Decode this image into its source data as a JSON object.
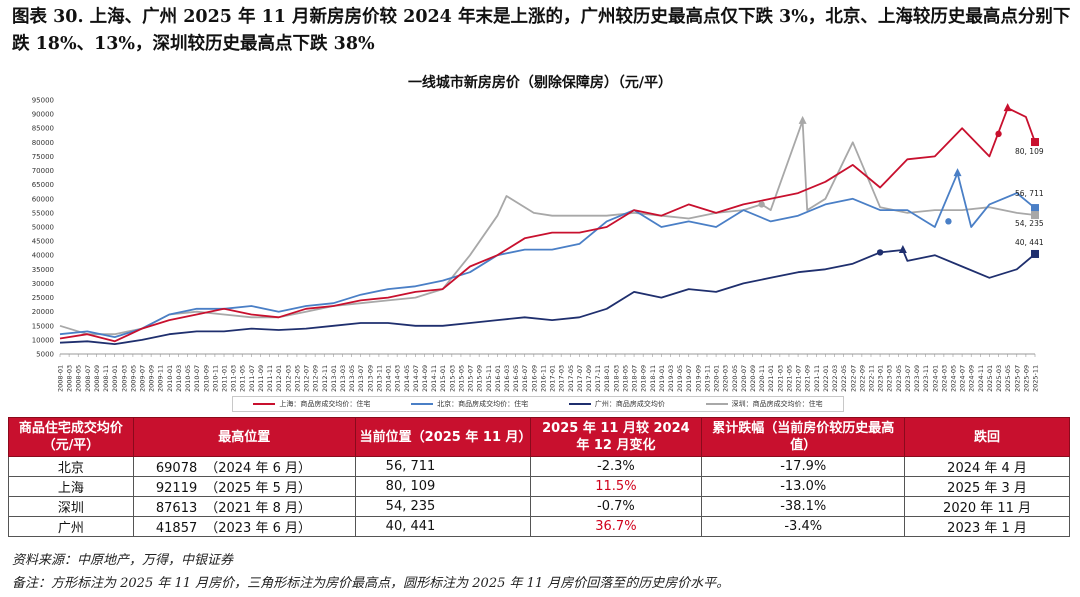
{
  "figure_title": "图表 30. 上海、广州 2025 年 11 月新房房价较 2024 年末是上涨的，广州较历史最高点仅下跌 3%，北京、上海较历史最高点分别下跌 18%、13%，深圳较历史最高点下跌 38%",
  "chart_data": {
    "type": "line",
    "title": "一线城市新房房价（剔除保障房）（元/平）",
    "xlabel": "",
    "ylabel": "",
    "ylim": [
      5000,
      95000
    ],
    "yticks": [
      5000,
      10000,
      15000,
      20000,
      25000,
      30000,
      35000,
      40000,
      45000,
      50000,
      55000,
      60000,
      65000,
      70000,
      75000,
      80000,
      85000,
      90000,
      95000
    ],
    "xticks": [
      "2008-01",
      "2008-03",
      "2008-05",
      "2008-07",
      "2008-09",
      "2008-11",
      "2009-01",
      "2009-03",
      "2009-05",
      "2009-07",
      "2009-09",
      "2009-11",
      "2010-01",
      "2010-03",
      "2010-05",
      "2010-07",
      "2010-09",
      "2010-11",
      "2011-01",
      "2011-03",
      "2011-05",
      "2011-07",
      "2011-09",
      "2011-11",
      "2012-01",
      "2012-03",
      "2012-05",
      "2012-07",
      "2012-09",
      "2012-11",
      "2013-01",
      "2013-03",
      "2013-05",
      "2013-07",
      "2013-09",
      "2013-11",
      "2014-01",
      "2014-03",
      "2014-05",
      "2014-07",
      "2014-09",
      "2014-11",
      "2015-01",
      "2015-03",
      "2015-05",
      "2015-07",
      "2015-09",
      "2015-11",
      "2016-01",
      "2016-03",
      "2016-05",
      "2016-07",
      "2016-09",
      "2016-11",
      "2017-01",
      "2017-03",
      "2017-05",
      "2017-07",
      "2017-09",
      "2017-11",
      "2018-01",
      "2018-03",
      "2018-05",
      "2018-07",
      "2018-09",
      "2018-11",
      "2019-01",
      "2019-03",
      "2019-05",
      "2019-07",
      "2019-09",
      "2019-11",
      "2020-01",
      "2020-03",
      "2020-05",
      "2020-07",
      "2020-09",
      "2020-11",
      "2021-01",
      "2021-03",
      "2021-05",
      "2021-07",
      "2021-09",
      "2021-11",
      "2022-01",
      "2022-03",
      "2022-05",
      "2022-07",
      "2022-09",
      "2022-11",
      "2023-01",
      "2023-03",
      "2023-05",
      "2023-07",
      "2023-09",
      "2023-11",
      "2024-01",
      "2024-03",
      "2024-05",
      "2024-07",
      "2024-09",
      "2024-11",
      "2025-01",
      "2025-03",
      "2025-05",
      "2025-07",
      "2025-09",
      "2025-11"
    ],
    "grid": false,
    "legend": "bottom",
    "series": [
      {
        "name": "上海：商品房成交均价：住宅",
        "color": "#c8102e",
        "points": [
          [
            "2008-01",
            10500
          ],
          [
            "2008-07",
            12000
          ],
          [
            "2009-01",
            9500
          ],
          [
            "2009-07",
            14000
          ],
          [
            "2010-01",
            17000
          ],
          [
            "2010-07",
            19000
          ],
          [
            "2011-01",
            21000
          ],
          [
            "2011-07",
            19000
          ],
          [
            "2012-01",
            18000
          ],
          [
            "2012-07",
            21000
          ],
          [
            "2013-01",
            22000
          ],
          [
            "2013-07",
            24000
          ],
          [
            "2014-01",
            25000
          ],
          [
            "2014-07",
            27000
          ],
          [
            "2015-01",
            28000
          ],
          [
            "2015-07",
            36000
          ],
          [
            "2016-01",
            40000
          ],
          [
            "2016-07",
            46000
          ],
          [
            "2017-01",
            48000
          ],
          [
            "2017-07",
            48000
          ],
          [
            "2018-01",
            50000
          ],
          [
            "2018-07",
            56000
          ],
          [
            "2019-01",
            54000
          ],
          [
            "2019-07",
            58000
          ],
          [
            "2020-01",
            55000
          ],
          [
            "2020-07",
            58000
          ],
          [
            "2021-01",
            60000
          ],
          [
            "2021-07",
            62000
          ],
          [
            "2022-01",
            66000
          ],
          [
            "2022-07",
            72000
          ],
          [
            "2023-01",
            64000
          ],
          [
            "2023-07",
            74000
          ],
          [
            "2024-01",
            75000
          ],
          [
            "2024-07",
            85000
          ],
          [
            "2025-01",
            75000
          ],
          [
            "2025-05",
            92119
          ],
          [
            "2025-09",
            89000
          ],
          [
            "2025-11",
            80109
          ]
        ],
        "markers": [
          {
            "shape": "triangle",
            "date": "2025-05",
            "value": 92119
          },
          {
            "shape": "circle",
            "date": "2025-03",
            "value": 83000
          },
          {
            "shape": "square",
            "date": "2025-11",
            "value": 80109
          }
        ],
        "end_label": "80, 109"
      },
      {
        "name": "北京：商品房成交均价：住宅",
        "color": "#4a7fc6",
        "points": [
          [
            "2008-01",
            12000
          ],
          [
            "2008-07",
            13000
          ],
          [
            "2009-01",
            11000
          ],
          [
            "2009-07",
            14000
          ],
          [
            "2010-01",
            19000
          ],
          [
            "2010-07",
            21000
          ],
          [
            "2011-01",
            21000
          ],
          [
            "2011-07",
            22000
          ],
          [
            "2012-01",
            20000
          ],
          [
            "2012-07",
            22000
          ],
          [
            "2013-01",
            23000
          ],
          [
            "2013-07",
            26000
          ],
          [
            "2014-01",
            28000
          ],
          [
            "2014-07",
            29000
          ],
          [
            "2015-01",
            31000
          ],
          [
            "2015-07",
            34000
          ],
          [
            "2016-01",
            40000
          ],
          [
            "2016-07",
            42000
          ],
          [
            "2017-01",
            42000
          ],
          [
            "2017-07",
            44000
          ],
          [
            "2018-01",
            52000
          ],
          [
            "2018-07",
            56000
          ],
          [
            "2019-01",
            50000
          ],
          [
            "2019-07",
            52000
          ],
          [
            "2020-01",
            50000
          ],
          [
            "2020-07",
            56000
          ],
          [
            "2021-01",
            52000
          ],
          [
            "2021-07",
            54000
          ],
          [
            "2022-01",
            58000
          ],
          [
            "2022-07",
            60000
          ],
          [
            "2023-01",
            56000
          ],
          [
            "2023-07",
            56000
          ],
          [
            "2024-01",
            50000
          ],
          [
            "2024-06",
            69078
          ],
          [
            "2024-09",
            50000
          ],
          [
            "2025-01",
            58000
          ],
          [
            "2025-07",
            62000
          ],
          [
            "2025-11",
            56711
          ]
        ],
        "markers": [
          {
            "shape": "triangle",
            "date": "2024-06",
            "value": 69078
          },
          {
            "shape": "circle",
            "date": "2024-04",
            "value": 52000
          },
          {
            "shape": "square",
            "date": "2025-11",
            "value": 56711
          }
        ],
        "end_label": "56, 711"
      },
      {
        "name": "广州：商品房成交均价",
        "color": "#1f2f6e",
        "points": [
          [
            "2008-01",
            9000
          ],
          [
            "2008-07",
            9500
          ],
          [
            "2009-01",
            8500
          ],
          [
            "2009-07",
            10000
          ],
          [
            "2010-01",
            12000
          ],
          [
            "2010-07",
            13000
          ],
          [
            "2011-01",
            13000
          ],
          [
            "2011-07",
            14000
          ],
          [
            "2012-01",
            13500
          ],
          [
            "2012-07",
            14000
          ],
          [
            "2013-01",
            15000
          ],
          [
            "2013-07",
            16000
          ],
          [
            "2014-01",
            16000
          ],
          [
            "2014-07",
            15000
          ],
          [
            "2015-01",
            15000
          ],
          [
            "2015-07",
            16000
          ],
          [
            "2016-01",
            17000
          ],
          [
            "2016-07",
            18000
          ],
          [
            "2017-01",
            17000
          ],
          [
            "2017-07",
            18000
          ],
          [
            "2018-01",
            21000
          ],
          [
            "2018-07",
            27000
          ],
          [
            "2019-01",
            25000
          ],
          [
            "2019-07",
            28000
          ],
          [
            "2020-01",
            27000
          ],
          [
            "2020-07",
            30000
          ],
          [
            "2021-01",
            32000
          ],
          [
            "2021-07",
            34000
          ],
          [
            "2022-01",
            35000
          ],
          [
            "2022-07",
            37000
          ],
          [
            "2023-01",
            41000
          ],
          [
            "2023-06",
            41857
          ],
          [
            "2023-07",
            38000
          ],
          [
            "2024-01",
            40000
          ],
          [
            "2024-07",
            36000
          ],
          [
            "2025-01",
            32000
          ],
          [
            "2025-07",
            35000
          ],
          [
            "2025-11",
            40441
          ]
        ],
        "markers": [
          {
            "shape": "triangle",
            "date": "2023-06",
            "value": 41857
          },
          {
            "shape": "circle",
            "date": "2023-01",
            "value": 41000
          },
          {
            "shape": "square",
            "date": "2025-11",
            "value": 40441
          }
        ],
        "end_label": "40, 441"
      },
      {
        "name": "深圳：商品房成交均价：住宅",
        "color": "#a8a8a8",
        "points": [
          [
            "2008-01",
            15000
          ],
          [
            "2008-07",
            12000
          ],
          [
            "2009-01",
            12000
          ],
          [
            "2009-07",
            14000
          ],
          [
            "2010-01",
            19000
          ],
          [
            "2010-07",
            20000
          ],
          [
            "2011-01",
            19000
          ],
          [
            "2011-07",
            18000
          ],
          [
            "2012-01",
            18000
          ],
          [
            "2012-07",
            20000
          ],
          [
            "2013-01",
            22000
          ],
          [
            "2013-07",
            23000
          ],
          [
            "2014-01",
            24000
          ],
          [
            "2014-07",
            25000
          ],
          [
            "2015-01",
            28000
          ],
          [
            "2015-07",
            40000
          ],
          [
            "2016-01",
            54000
          ],
          [
            "2016-03",
            61000
          ],
          [
            "2016-09",
            55000
          ],
          [
            "2017-01",
            54000
          ],
          [
            "2017-07",
            54000
          ],
          [
            "2018-01",
            54000
          ],
          [
            "2018-07",
            55000
          ],
          [
            "2019-01",
            54000
          ],
          [
            "2019-07",
            53000
          ],
          [
            "2020-01",
            55000
          ],
          [
            "2020-07",
            56000
          ],
          [
            "2020-11",
            58000
          ],
          [
            "2021-01",
            56000
          ],
          [
            "2021-08",
            87613
          ],
          [
            "2021-09",
            56000
          ],
          [
            "2022-01",
            60000
          ],
          [
            "2022-07",
            80000
          ],
          [
            "2023-01",
            57000
          ],
          [
            "2023-07",
            55000
          ],
          [
            "2024-01",
            56000
          ],
          [
            "2024-07",
            56000
          ],
          [
            "2025-01",
            57000
          ],
          [
            "2025-07",
            55000
          ],
          [
            "2025-11",
            54235
          ]
        ],
        "markers": [
          {
            "shape": "triangle",
            "date": "2021-08",
            "value": 87613
          },
          {
            "shape": "circle",
            "date": "2020-11",
            "value": 58000
          },
          {
            "shape": "square",
            "date": "2025-11",
            "value": 54235
          }
        ],
        "end_label": "54, 235"
      }
    ]
  },
  "table": {
    "headers": [
      "商品住宅成交均价（元/平）",
      "最高位置",
      "当前位置（2025 年 11 月）",
      "2025 年 11 月较 2024 年 12 月变化",
      "累计跌幅（当前房价较历史最高值）",
      "跌回"
    ],
    "rows": [
      {
        "city": "北京",
        "peak_value": "69078",
        "peak_date": "（2024 年 6 月）",
        "current": "56, 711",
        "change": "-2.3%",
        "change_red": false,
        "drawdown": "-17.9%",
        "back_to": "2024 年 4 月"
      },
      {
        "city": "上海",
        "peak_value": "92119",
        "peak_date": "（2025 年 5 月）",
        "current": "80, 109",
        "change": "11.5%",
        "change_red": true,
        "drawdown": "-13.0%",
        "back_to": "2025 年 3 月"
      },
      {
        "city": "深圳",
        "peak_value": "87613",
        "peak_date": "（2021 年 8 月）",
        "current": "54, 235",
        "change": "-0.7%",
        "change_red": false,
        "drawdown": "-38.1%",
        "back_to": "2020 年 11 月"
      },
      {
        "city": "广州",
        "peak_value": "41857",
        "peak_date": "（2023 年 6 月）",
        "current": "40, 441",
        "change": "36.7%",
        "change_red": true,
        "drawdown": "-3.4%",
        "back_to": "2023 年 1 月"
      }
    ]
  },
  "source": "资料来源：中原地产，万得，中银证券",
  "note": "备注：方形标注为 2025 年 11 月房价，三角形标注为房价最高点，圆形标注为 2025 年 11 月房价回落至的历史房价水平。"
}
